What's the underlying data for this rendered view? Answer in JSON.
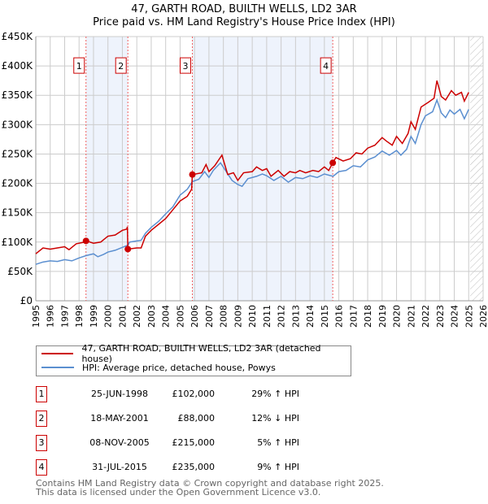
{
  "title": "47, GARTH ROAD, BUILTH WELLS, LD2 3AR",
  "subtitle": "Price paid vs. HM Land Registry's House Price Index (HPI)",
  "legend": {
    "property": "47, GARTH ROAD, BUILTH WELLS, LD2 3AR (detached house)",
    "hpi": "HPI: Average price, detached house, Powys"
  },
  "sales": [
    {
      "n": "1",
      "date": "25-JUN-1998",
      "price": "£102,000",
      "hpi": "29% ↑ HPI",
      "x": 1998.48,
      "y": 102
    },
    {
      "n": "2",
      "date": "18-MAY-2001",
      "price": "£88,000",
      "hpi": "12% ↓ HPI",
      "x": 2001.38,
      "y": 88
    },
    {
      "n": "3",
      "date": "08-NOV-2005",
      "price": "£215,000",
      "hpi": "5% ↑ HPI",
      "x": 2005.85,
      "y": 215
    },
    {
      "n": "4",
      "date": "31-JUL-2015",
      "price": "£235,000",
      "hpi": "9% ↑ HPI",
      "x": 2015.58,
      "y": 235
    }
  ],
  "footer": [
    "Contains HM Land Registry data © Crown copyright and database right 2025.",
    "This data is licensed under the Open Government Licence v3.0."
  ],
  "chart_data": {
    "type": "line",
    "xlim": [
      1995,
      2026
    ],
    "ylim": [
      0,
      450
    ],
    "yticks": [
      "£0",
      "£50K",
      "£100K",
      "£150K",
      "£200K",
      "£250K",
      "£300K",
      "£350K",
      "£400K",
      "£450K"
    ],
    "xticks": [
      "1995",
      "1996",
      "1997",
      "1998",
      "1999",
      "2000",
      "2001",
      "2002",
      "2003",
      "2004",
      "2005",
      "2006",
      "2007",
      "2008",
      "2009",
      "2010",
      "2011",
      "2012",
      "2013",
      "2014",
      "2015",
      "2016",
      "2017",
      "2018",
      "2019",
      "2020",
      "2021",
      "2022",
      "2023",
      "2024",
      "2025",
      "2026"
    ],
    "colors": {
      "property": "#cc0000",
      "hpi": "#5b8fd0",
      "shade": "#eef3fc"
    },
    "series": [
      {
        "name": "property",
        "x": [
          1995,
          1995.5,
          1996,
          1996.5,
          1997,
          1997.3,
          1997.8,
          1998.4,
          1998.5,
          1999,
          1999.5,
          2000,
          2000.5,
          2001,
          2001.3,
          2001.35,
          2001.38,
          2002,
          2002.3,
          2002.6,
          2003,
          2003.5,
          2004,
          2004.5,
          2005,
          2005.5,
          2005.8,
          2005.85,
          2006.5,
          2006.8,
          2007,
          2007.4,
          2007.9,
          2008.3,
          2008.7,
          2009,
          2009.4,
          2010,
          2010.3,
          2010.7,
          2011,
          2011.3,
          2011.8,
          2012.2,
          2012.6,
          2013,
          2013.3,
          2013.7,
          2014.2,
          2014.6,
          2015,
          2015.3,
          2015.58,
          2015.8,
          2016.3,
          2016.8,
          2017.2,
          2017.6,
          2018,
          2018.5,
          2019,
          2019.3,
          2019.7,
          2020,
          2020.4,
          2020.8,
          2021,
          2021.3,
          2021.7,
          2022.2,
          2022.6,
          2022.8,
          2023.1,
          2023.4,
          2023.8,
          2024.1,
          2024.5,
          2024.7,
          2025
        ],
        "y": [
          80,
          90,
          88,
          90,
          92,
          87,
          97,
          100,
          102,
          98,
          100,
          110,
          112,
          120,
          122,
          126,
          88,
          90,
          90,
          110,
          120,
          130,
          140,
          155,
          170,
          178,
          190,
          215,
          218,
          232,
          220,
          230,
          248,
          215,
          218,
          205,
          218,
          220,
          228,
          222,
          225,
          212,
          222,
          212,
          220,
          218,
          222,
          218,
          222,
          220,
          228,
          222,
          235,
          244,
          238,
          242,
          252,
          250,
          260,
          265,
          278,
          272,
          265,
          280,
          268,
          285,
          305,
          292,
          330,
          338,
          345,
          375,
          348,
          342,
          358,
          350,
          355,
          340,
          355
        ]
      },
      {
        "name": "hpi",
        "x": [
          1995,
          1995.5,
          1996,
          1996.5,
          1997,
          1997.5,
          1998,
          1998.5,
          1999,
          1999.3,
          1999.7,
          2000,
          2000.5,
          2001,
          2001.4,
          2001.5,
          2002,
          2002.3,
          2002.6,
          2003,
          2003.5,
          2004,
          2004.5,
          2005,
          2005.5,
          2005.85,
          2006.3,
          2006.7,
          2007,
          2007.3,
          2007.8,
          2008.2,
          2008.6,
          2009,
          2009.3,
          2009.7,
          2010.3,
          2010.7,
          2011,
          2011.5,
          2012,
          2012.5,
          2013,
          2013.5,
          2014,
          2014.5,
          2015,
          2015.6,
          2016,
          2016.5,
          2017,
          2017.5,
          2018,
          2018.5,
          2019,
          2019.5,
          2020,
          2020.3,
          2020.7,
          2021,
          2021.3,
          2021.7,
          2022,
          2022.5,
          2022.8,
          2023.1,
          2023.4,
          2023.7,
          2024,
          2024.4,
          2024.7,
          2025
        ],
        "y": [
          62,
          66,
          68,
          67,
          70,
          68,
          73,
          77,
          80,
          75,
          79,
          83,
          86,
          91,
          95,
          100,
          102,
          103,
          115,
          125,
          135,
          148,
          160,
          180,
          190,
          203,
          207,
          220,
          210,
          222,
          235,
          220,
          205,
          198,
          195,
          208,
          212,
          216,
          213,
          205,
          212,
          202,
          210,
          208,
          213,
          210,
          216,
          212,
          220,
          222,
          230,
          228,
          240,
          245,
          255,
          248,
          256,
          248,
          258,
          280,
          268,
          300,
          315,
          322,
          342,
          320,
          312,
          325,
          318,
          326,
          310,
          326
        ]
      }
    ],
    "shaded_ranges": [
      [
        1998.48,
        2001.38
      ],
      [
        2005.85,
        2015.58
      ]
    ],
    "forecast_hatch_from": 2025.1
  }
}
